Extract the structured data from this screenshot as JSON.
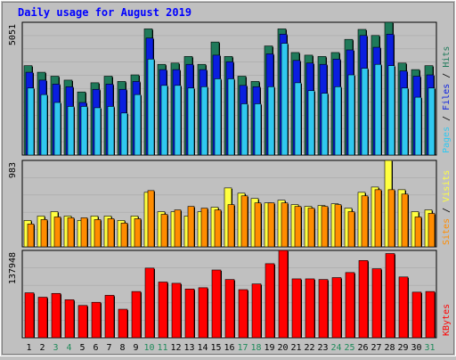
{
  "chart_data": [
    {
      "type": "bar",
      "title": "Daily usage for August 2019",
      "categories": [
        "1",
        "2",
        "3",
        "4",
        "5",
        "6",
        "7",
        "8",
        "9",
        "10",
        "11",
        "12",
        "13",
        "14",
        "15",
        "16",
        "17",
        "18",
        "19",
        "20",
        "21",
        "22",
        "23",
        "24",
        "25",
        "26",
        "27",
        "28",
        "29",
        "30",
        "31"
      ],
      "weekend_days": [
        "3",
        "4",
        "10",
        "11",
        "17",
        "18",
        "24",
        "25",
        "31"
      ],
      "ymax_label": "5051",
      "ylim": [
        0,
        5051
      ],
      "right_label": [
        "Pages",
        "Files",
        "Hits"
      ],
      "colors": {
        "hits": "#1f7a5a",
        "files": "#0a1ee0",
        "pages": "#30c8f0"
      },
      "grid": true,
      "series": [
        {
          "name": "Hits",
          "values": [
            3400,
            3150,
            3000,
            2850,
            2400,
            2750,
            3000,
            2800,
            3050,
            4800,
            3450,
            3500,
            3750,
            3450,
            4300,
            3750,
            3000,
            2800,
            4150,
            4800,
            3900,
            3800,
            3750,
            3900,
            4400,
            4780,
            4550,
            5051,
            3500,
            3250,
            3400
          ]
        },
        {
          "name": "Files",
          "values": [
            3150,
            2850,
            2700,
            2600,
            2000,
            2500,
            2700,
            2500,
            2800,
            4450,
            3250,
            3250,
            3450,
            3250,
            3800,
            3550,
            2650,
            2600,
            3850,
            4600,
            3600,
            3500,
            3450,
            3650,
            4000,
            4550,
            4100,
            4600,
            3200,
            3000,
            3050
          ]
        },
        {
          "name": "Pages",
          "values": [
            2550,
            2300,
            2000,
            1850,
            1850,
            1800,
            1850,
            1600,
            2300,
            3650,
            2650,
            2650,
            2550,
            2600,
            2900,
            2900,
            1950,
            1950,
            2600,
            4250,
            2750,
            2450,
            2350,
            2600,
            3050,
            3300,
            3450,
            3400,
            2550,
            2200,
            2550
          ]
        }
      ]
    },
    {
      "type": "bar",
      "categories": [
        "1",
        "2",
        "3",
        "4",
        "5",
        "6",
        "7",
        "8",
        "9",
        "10",
        "11",
        "12",
        "13",
        "14",
        "15",
        "16",
        "17",
        "18",
        "19",
        "20",
        "21",
        "22",
        "23",
        "24",
        "25",
        "26",
        "27",
        "28",
        "29",
        "30",
        "31"
      ],
      "ymax_label": "983",
      "ylim": [
        0,
        983
      ],
      "right_label": [
        "Sites",
        "Visits"
      ],
      "colors": {
        "visits": "#ffff40",
        "sites": "#ff8c00"
      },
      "series": [
        {
          "name": "Visits",
          "values": [
            300,
            350,
            400,
            350,
            300,
            350,
            350,
            300,
            350,
            620,
            400,
            400,
            350,
            400,
            450,
            670,
            610,
            550,
            500,
            530,
            480,
            460,
            470,
            490,
            440,
            620,
            680,
            983,
            650,
            400,
            420
          ]
        },
        {
          "name": "Sites",
          "values": [
            260,
            310,
            340,
            330,
            330,
            310,
            320,
            270,
            320,
            640,
            370,
            420,
            460,
            440,
            420,
            480,
            580,
            500,
            500,
            500,
            460,
            440,
            460,
            480,
            400,
            580,
            650,
            650,
            600,
            340,
            380
          ]
        }
      ]
    },
    {
      "type": "bar",
      "categories": [
        "1",
        "2",
        "3",
        "4",
        "5",
        "6",
        "7",
        "8",
        "9",
        "10",
        "11",
        "12",
        "13",
        "14",
        "15",
        "16",
        "17",
        "18",
        "19",
        "20",
        "21",
        "22",
        "23",
        "24",
        "25",
        "26",
        "27",
        "28",
        "29",
        "30",
        "31"
      ],
      "ymax_label": "137948",
      "ylim": [
        0,
        137948
      ],
      "right_label": [
        "KBytes"
      ],
      "colors": {
        "kbytes": "#ff0000"
      },
      "series": [
        {
          "name": "KBytes",
          "values": [
            71000,
            64000,
            70000,
            60000,
            51000,
            56000,
            67000,
            45000,
            73000,
            110000,
            88000,
            86000,
            77000,
            79000,
            107000,
            92000,
            76000,
            85000,
            117000,
            137948,
            93000,
            93000,
            92000,
            95000,
            103000,
            122000,
            109000,
            133000,
            96000,
            72000,
            73000
          ]
        }
      ]
    }
  ]
}
